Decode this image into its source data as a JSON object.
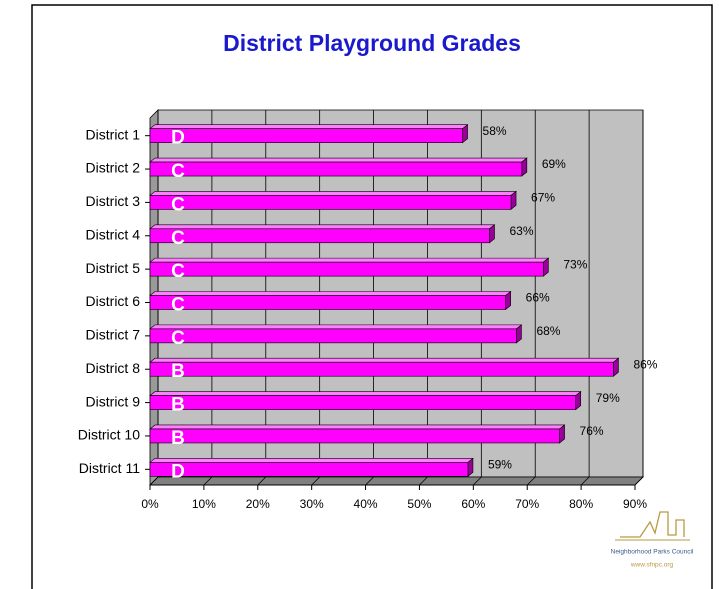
{
  "chart_data": {
    "type": "bar",
    "orientation": "horizontal",
    "title": "District Playground Grades",
    "categories": [
      "District 1",
      "District 2",
      "District 3",
      "District 4",
      "District 5",
      "District 6",
      "District 7",
      "District 8",
      "District 9",
      "District 10",
      "District 11"
    ],
    "values": [
      58,
      69,
      67,
      63,
      73,
      66,
      68,
      86,
      79,
      76,
      59
    ],
    "value_labels": [
      "58%",
      "69%",
      "67%",
      "63%",
      "73%",
      "66%",
      "68%",
      "86%",
      "79%",
      "76%",
      "59%"
    ],
    "grades": [
      "D",
      "C",
      "C",
      "C",
      "C",
      "C",
      "C",
      "B",
      "B",
      "B",
      "D"
    ],
    "color": "#ff00ff",
    "xlim": [
      0,
      90
    ],
    "xticks": [
      {
        "value": 0,
        "label": "0%"
      },
      {
        "value": 10,
        "label": "10%"
      },
      {
        "value": 20,
        "label": "20%"
      },
      {
        "value": 30,
        "label": "30%"
      },
      {
        "value": 40,
        "label": "40%"
      },
      {
        "value": 50,
        "label": "50%"
      },
      {
        "value": 60,
        "label": "60%"
      },
      {
        "value": 70,
        "label": "70%"
      },
      {
        "value": 80,
        "label": "80%"
      },
      {
        "value": 90,
        "label": "90%"
      }
    ],
    "grid": true,
    "logo": {
      "name": "Neighborhood Parks Council",
      "url": "www.sfnpc.org"
    }
  }
}
